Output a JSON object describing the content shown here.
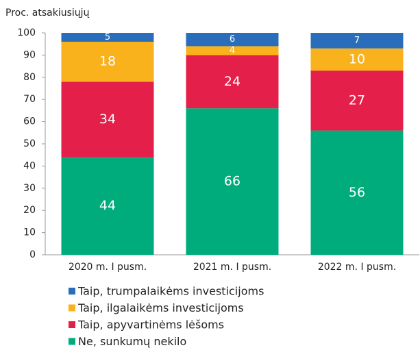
{
  "chart_data": {
    "type": "stacked-bar",
    "y_label": "Proc. atsakiusiųjų",
    "categories": [
      "2020 m. I pusm.",
      "2021 m. I pusm.",
      "2022 m. I pusm."
    ],
    "series": [
      {
        "name": "Ne, sunkumų nekilo",
        "color": "#00ac7c",
        "values": [
          44,
          66,
          56
        ]
      },
      {
        "name": "Taip, apyvartinėms lėšoms",
        "color": "#e4204a",
        "values": [
          34,
          24,
          27
        ]
      },
      {
        "name": "Taip, ilgalaikėms investicijoms",
        "color": "#f9b21b",
        "values": [
          18,
          4,
          10
        ]
      },
      {
        "name": "Taip, trumpalaikėms investicijoms",
        "color": "#2a6ebb",
        "values": [
          5,
          6,
          7
        ]
      }
    ],
    "ylim": [
      0,
      100
    ],
    "yticks": [
      0,
      10,
      20,
      30,
      40,
      50,
      60,
      70,
      80,
      90,
      100
    ],
    "grid": false
  }
}
